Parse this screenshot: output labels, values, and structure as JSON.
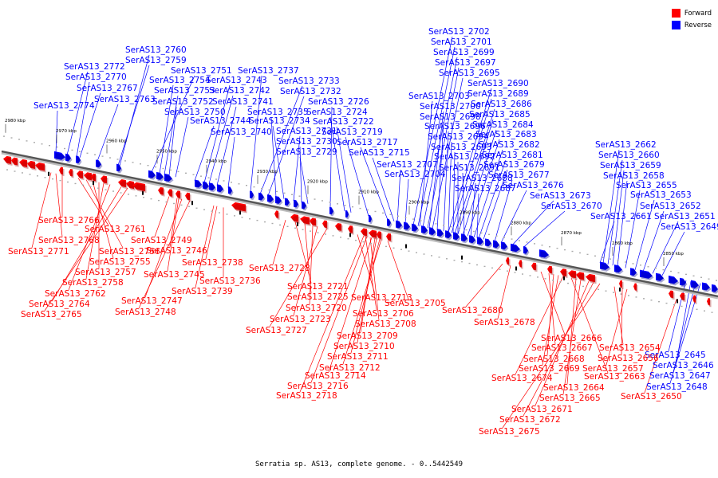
{
  "caption": "Serratia sp. AS13, complete genome. - 0..5442549",
  "legend": {
    "forward": {
      "label": "Forward",
      "color": "#ff0000"
    },
    "reverse": {
      "label": "Reverse",
      "color": "#0000ff"
    }
  },
  "ticks": [
    "2980 kbp",
    "2970 kbp",
    "2960 kbp",
    "2950 kbp",
    "2940 kbp",
    "2930 kbp",
    "2920 kbp",
    "2910 kbp",
    "2900 kbp",
    "2890 kbp",
    "2880 kbp",
    "2870 kbp",
    "2860 kbp",
    "2850 kbp"
  ],
  "reverse_labels": [
    "SerAS13_2774",
    "SerAS13_2772",
    "SerAS13_2770",
    "SerAS13_2767",
    "SerAS13_2763",
    "SerAS13_2760",
    "SerAS13_2759",
    "SerAS13_2751",
    "SerAS13_2754",
    "SerAS13_2753",
    "SerAS13_2752",
    "SerAS13_2750",
    "SerAS13_2744",
    "SerAS13_2743",
    "SerAS13_2742",
    "SerAS13_2741",
    "SerAS13_2740",
    "SerAS13_2737",
    "SerAS13_2733",
    "SerAS13_2732",
    "SerAS13_2735",
    "SerAS13_2734",
    "SerAS13_2731",
    "SerAS13_2730",
    "SerAS13_2729",
    "SerAS13_2726",
    "SerAS13_2724",
    "SerAS13_2722",
    "SerAS13_2719",
    "SerAS13_2717",
    "SerAS13_2715",
    "SerAS13_2707",
    "SerAS13_2704",
    "SerAS13_2702",
    "SerAS13_2701",
    "SerAS13_2699",
    "SerAS13_2697",
    "SerAS13_2695",
    "SerAS13_2690",
    "SerAS13_2703",
    "SerAS13_2689",
    "SerAS13_2700",
    "SerAS13_2686",
    "SerAS13_2698",
    "SerAS13_2685",
    "SerAS13_2696",
    "SerAS13_2684",
    "SerAS13_2694",
    "SerAS13_2683",
    "SerAS13_2693",
    "SerAS13_2682",
    "SerAS13_2692",
    "SerAS13_2681",
    "SerAS13_2691",
    "SerAS13_2679",
    "SerAS13_2688",
    "SerAS13_2677",
    "SerAS13_2687",
    "SerAS13_2676",
    "SerAS13_2673",
    "SerAS13_2670",
    "SerAS13_2662",
    "SerAS13_2660",
    "SerAS13_2659",
    "SerAS13_2658",
    "SerAS13_2655",
    "SerAS13_2653",
    "SerAS13_2652",
    "SerAS13_2651",
    "SerAS13_2649",
    "SerAS13_2661",
    "SerAS13_2645",
    "SerAS13_2646",
    "SerAS13_2647",
    "SerAS13_2648"
  ],
  "forward_labels": [
    "SerAS13_2766",
    "SerAS13_2768",
    "SerAS13_2771",
    "SerAS13_2761",
    "SerAS13_2756",
    "SerAS13_2755",
    "SerAS13_2757",
    "SerAS13_2758",
    "SerAS13_2762",
    "SerAS13_2764",
    "SerAS13_2765",
    "SerAS13_2749",
    "SerAS13_2746",
    "SerAS13_2745",
    "SerAS13_2747",
    "SerAS13_2748",
    "SerAS13_2738",
    "SerAS13_2736",
    "SerAS13_2739",
    "SerAS13_2728",
    "SerAS13_2721",
    "SerAS13_2725",
    "SerAS13_2720",
    "SerAS13_2723",
    "SerAS13_2727",
    "SerAS13_2713",
    "SerAS13_2706",
    "SerAS13_2708",
    "SerAS13_2709",
    "SerAS13_2710",
    "SerAS13_2711",
    "SerAS13_2712",
    "SerAS13_2714",
    "SerAS13_2716",
    "SerAS13_2718",
    "SerAS13_2705",
    "SerAS13_2680",
    "SerAS13_2678",
    "SerAS13_2666",
    "SerAS13_2667",
    "SerAS13_2668",
    "SerAS13_2669",
    "SerAS13_2674",
    "SerAS13_2663",
    "SerAS13_2664",
    "SerAS13_2665",
    "SerAS13_2671",
    "SerAS13_2672",
    "SerAS13_2675",
    "SerAS13_2654",
    "SerAS13_2656",
    "SerAS13_2657",
    "SerAS13_2650"
  ]
}
